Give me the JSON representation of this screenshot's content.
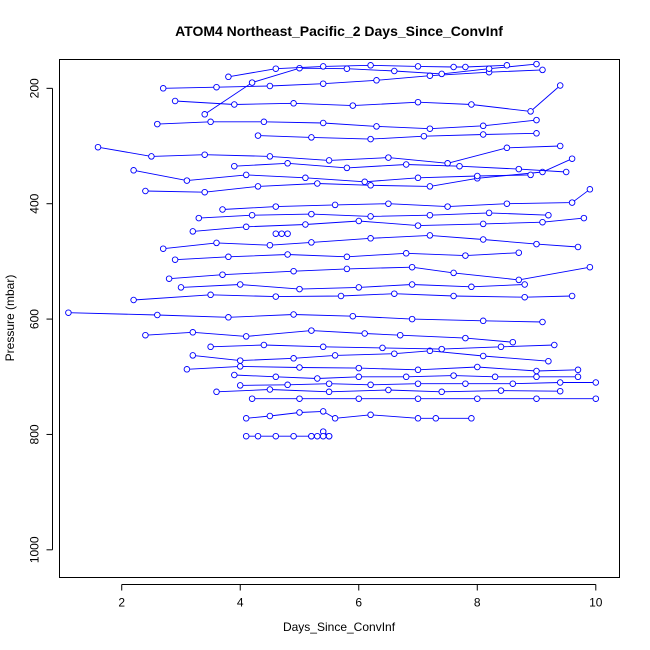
{
  "chart_data": {
    "type": "line",
    "title": "ATOM4 Northeast_Pacific_2 Days_Since_ConvInf",
    "xlabel": "Days_Since_ConvInf",
    "ylabel": "Pressure (mbar)",
    "xlim": [
      0.95,
      10.4
    ],
    "ylim": [
      1048,
      150
    ],
    "y_reversed": true,
    "x_ticks": [
      2,
      4,
      6,
      8,
      10
    ],
    "x_tick_labels": [
      "2",
      "4",
      "6",
      "8",
      "10"
    ],
    "y_ticks": [
      200,
      400,
      600,
      800,
      1000
    ],
    "y_tick_labels": [
      "200",
      "400",
      "600",
      "800",
      "1000"
    ],
    "grid": false,
    "legend": "none",
    "marker": "open-circle",
    "color": "#0000ff",
    "series": [
      {
        "x": [
          4.1,
          4.3,
          4.6,
          4.9,
          5.2,
          5.5,
          5.4
        ],
        "y": [
          803,
          803,
          803,
          803,
          803,
          803,
          795
        ]
      },
      {
        "x": [
          4.1,
          4.5,
          5.0,
          5.4,
          5.6,
          6.2,
          7.0,
          7.3,
          7.9
        ],
        "y": [
          772,
          768,
          762,
          760,
          772,
          766,
          772,
          772,
          772
        ]
      },
      {
        "x": [
          4.2,
          5.0,
          6.0,
          7.0,
          8.0,
          9.0,
          10.0
        ],
        "y": [
          738,
          738,
          738,
          738,
          738,
          738,
          738
        ]
      },
      {
        "x": [
          4.0,
          4.8,
          5.5,
          6.2,
          7.0,
          7.8,
          8.6,
          9.4,
          10.0
        ],
        "y": [
          715,
          714,
          712,
          714,
          712,
          712,
          712,
          710,
          710
        ]
      },
      {
        "x": [
          3.9,
          4.6,
          5.3,
          6.0,
          6.8,
          7.6,
          8.3,
          9.0,
          9.7
        ],
        "y": [
          697,
          700,
          703,
          700,
          700,
          698,
          700,
          700,
          700
        ]
      },
      {
        "x": [
          3.2,
          4.0,
          4.9,
          5.6,
          6.6,
          7.2,
          8.1,
          9.2
        ],
        "y": [
          663,
          672,
          668,
          663,
          660,
          655,
          664,
          673
        ]
      },
      {
        "x": [
          2.4,
          3.2,
          4.1,
          5.2,
          6.1,
          6.7,
          7.8,
          8.6
        ],
        "y": [
          628,
          623,
          630,
          620,
          625,
          628,
          633,
          640
        ]
      },
      {
        "x": [
          1.1,
          2.6,
          3.8,
          4.9,
          5.9,
          6.9,
          8.1,
          9.1
        ],
        "y": [
          589,
          593,
          597,
          592,
          595,
          600,
          603,
          605
        ]
      },
      {
        "x": [
          2.2,
          3.5,
          4.6,
          5.7,
          6.6,
          7.6,
          8.8,
          9.6
        ],
        "y": [
          567,
          558,
          561,
          560,
          556,
          560,
          562,
          560
        ]
      },
      {
        "x": [
          2.8,
          3.7,
          4.9,
          5.8,
          6.9,
          7.6,
          8.7,
          9.9
        ],
        "y": [
          530,
          523,
          517,
          513,
          510,
          520,
          532,
          510
        ]
      },
      {
        "x": [
          2.7,
          3.6,
          4.5,
          5.2,
          6.2,
          7.2,
          8.1,
          9.0,
          9.7
        ],
        "y": [
          478,
          468,
          472,
          467,
          460,
          455,
          462,
          470,
          475
        ]
      },
      {
        "x": [
          3.2,
          4.1,
          5.1,
          6.0,
          7.0,
          8.1,
          9.1,
          9.8
        ],
        "y": [
          448,
          440,
          436,
          430,
          438,
          435,
          432,
          425
        ]
      },
      {
        "x": [
          3.7,
          4.6,
          5.6,
          6.5,
          7.5,
          8.5,
          9.6,
          9.9
        ],
        "y": [
          410,
          405,
          402,
          400,
          405,
          400,
          398,
          375
        ]
      },
      {
        "x": [
          2.4,
          3.4,
          4.3,
          5.3,
          6.2,
          7.2,
          8.0,
          9.1,
          9.6
        ],
        "y": [
          378,
          380,
          370,
          365,
          368,
          370,
          356,
          345,
          322
        ]
      },
      {
        "x": [
          1.6,
          2.5,
          3.4,
          4.5,
          5.5,
          6.5,
          7.5,
          8.5,
          9.4
        ],
        "y": [
          302,
          318,
          315,
          318,
          325,
          320,
          330,
          303,
          300
        ]
      },
      {
        "x": [
          2.6,
          3.5,
          4.4,
          5.4,
          6.3,
          7.2,
          8.1,
          9.0
        ],
        "y": [
          262,
          258,
          258,
          260,
          266,
          270,
          265,
          255
        ]
      },
      {
        "x": [
          2.9,
          3.9,
          4.9,
          5.9,
          7.0,
          7.9,
          8.9,
          9.4
        ],
        "y": [
          222,
          228,
          226,
          230,
          224,
          228,
          240,
          195
        ]
      },
      {
        "x": [
          2.7,
          3.6,
          4.5,
          5.4,
          6.3,
          7.2,
          8.2,
          9.1
        ],
        "y": [
          200,
          198,
          196,
          192,
          186,
          178,
          172,
          168
        ]
      },
      {
        "x": [
          3.4,
          4.2,
          5.0,
          5.8,
          6.6,
          7.4,
          8.2,
          9.0
        ],
        "y": [
          245,
          190,
          165,
          166,
          170,
          175,
          166,
          158
        ]
      },
      {
        "x": [
          3.8,
          4.6,
          5.4,
          6.2,
          7.0,
          7.6,
          7.8,
          8.5
        ],
        "y": [
          180,
          166,
          162,
          160,
          162,
          163,
          163,
          160
        ]
      },
      {
        "x": [
          2.2,
          3.1,
          4.1,
          5.1,
          6.1,
          7.0,
          8.0,
          8.9
        ],
        "y": [
          342,
          360,
          350,
          355,
          362,
          355,
          352,
          350
        ]
      },
      {
        "x": [
          3.0,
          4.0,
          5.0,
          6.0,
          6.9,
          7.9,
          8.8
        ],
        "y": [
          545,
          540,
          548,
          545,
          540,
          544,
          540
        ]
      },
      {
        "x": [
          3.5,
          4.4,
          5.4,
          6.4,
          7.4,
          8.4,
          9.3
        ],
        "y": [
          648,
          645,
          648,
          650,
          652,
          648,
          645
        ]
      },
      {
        "x": [
          3.6,
          4.5,
          5.5,
          6.5,
          7.4,
          8.4,
          9.4
        ],
        "y": [
          726,
          722,
          726,
          723,
          726,
          724,
          725
        ]
      },
      {
        "x": [
          3.1,
          4.0,
          5.0,
          6.0,
          7.0,
          8.0,
          9.0,
          9.7
        ],
        "y": [
          687,
          682,
          684,
          685,
          688,
          683,
          690,
          688
        ]
      },
      {
        "x": [
          2.9,
          3.8,
          4.8,
          5.8,
          6.8,
          7.8,
          8.7
        ],
        "y": [
          497,
          492,
          488,
          492,
          486,
          490,
          485
        ]
      },
      {
        "x": [
          3.3,
          4.2,
          5.2,
          6.2,
          7.2,
          8.2,
          9.2
        ],
        "y": [
          425,
          420,
          418,
          422,
          420,
          416,
          420
        ]
      },
      {
        "x": [
          3.9,
          4.8,
          5.8,
          6.8,
          7.7,
          8.7,
          9.5
        ],
        "y": [
          335,
          330,
          338,
          332,
          335,
          340,
          345
        ]
      },
      {
        "x": [
          4.3,
          5.2,
          6.2,
          7.1,
          8.1,
          9.0
        ],
        "y": [
          282,
          285,
          288,
          283,
          280,
          278
        ]
      },
      {
        "x": [
          4.6,
          4.7,
          4.8
        ],
        "y": [
          452,
          452,
          452
        ]
      },
      {
        "x": [
          5.2,
          5.3,
          5.4,
          5.5
        ],
        "y": [
          803,
          803,
          803,
          803
        ]
      }
    ]
  }
}
